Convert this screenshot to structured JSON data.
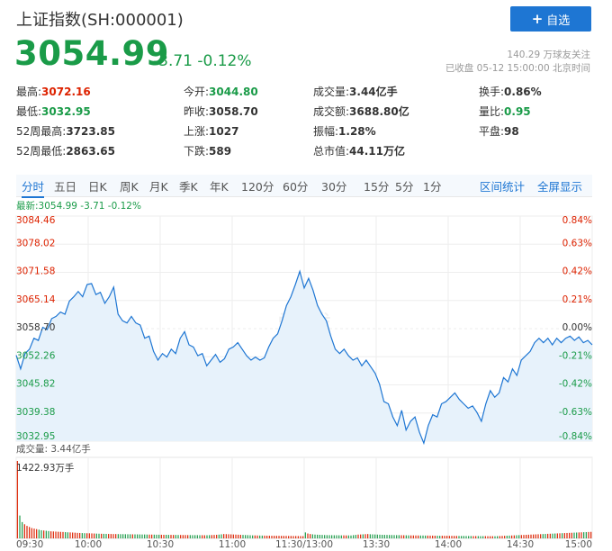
{
  "header": {
    "title": "上证指数(SH:000001)",
    "add_label": "自选",
    "price": "3054.99",
    "change": "-3.71 -0.12%",
    "followers": "140.29 万球友关注",
    "status": "已收盘 05-12 15:00:00 北京时间"
  },
  "stats": [
    {
      "label": "最高:",
      "value": "3072.16",
      "color": "red"
    },
    {
      "label": "今开:",
      "value": "3044.80",
      "color": "green"
    },
    {
      "label": "成交量:",
      "value": "3.44亿手",
      "color": "plain"
    },
    {
      "label": "换手:",
      "value": "0.86%",
      "color": "plain"
    },
    {
      "label": "最低:",
      "value": "3032.95",
      "color": "green"
    },
    {
      "label": "昨收:",
      "value": "3058.70",
      "color": "plain"
    },
    {
      "label": "成交额:",
      "value": "3688.80亿",
      "color": "plain"
    },
    {
      "label": "量比:",
      "value": "0.95",
      "color": "green"
    },
    {
      "label": "52周最高:",
      "value": "3723.85",
      "color": "plain"
    },
    {
      "label": "上涨:",
      "value": "1027",
      "color": "plain"
    },
    {
      "label": "振幅:",
      "value": "1.28%",
      "color": "plain"
    },
    {
      "label": "平盘:",
      "value": "98",
      "color": "plain"
    },
    {
      "label": "52周最低:",
      "value": "2863.65",
      "color": "plain"
    },
    {
      "label": "下跌:",
      "value": "589",
      "color": "plain"
    },
    {
      "label": "总市值:",
      "value": "44.11万亿",
      "color": "plain"
    }
  ],
  "tabs": [
    "分时",
    "五日",
    "日K",
    "周K",
    "月K",
    "季K",
    "年K",
    "120分",
    "60分",
    "30分",
    "15分",
    "5分",
    "1分"
  ],
  "active_tab": "分时",
  "right_tabs": [
    "区间统计",
    "全屏显示"
  ],
  "latest_line": "最新:3054.99 -3.71 -0.12%",
  "volume_label": "成交量: 3.44亿手",
  "volume_max_label": "1422.93万手",
  "watermark": "雪球",
  "colors": {
    "up": "#dd2200",
    "down": "#1a9b48",
    "line": "#1e76d3",
    "fill": "#e7f2fb",
    "accent": "#1e76d3"
  },
  "chart_data": {
    "type": "line",
    "y_price_ticks": [
      "3084.46",
      "3078.02",
      "3071.58",
      "3065.14",
      "3058.70",
      "3052.26",
      "3045.82",
      "3039.38",
      "3032.95"
    ],
    "y_pct_ticks": [
      "0.84%",
      "0.63%",
      "0.42%",
      "0.21%",
      "0.00%",
      "-0.21%",
      "-0.42%",
      "-0.63%",
      "-0.84%"
    ],
    "ylim": [
      3032.95,
      3084.46
    ],
    "prev_close": 3058.7,
    "x_ticks": [
      "09:30",
      "10:00",
      "10:30",
      "11:00",
      "11:30/13:00",
      "13:30",
      "14:00",
      "14:30",
      "15:00"
    ],
    "x_tick_minutes": [
      0,
      30,
      60,
      90,
      120,
      150,
      180,
      210,
      240
    ],
    "price_series": [
      [
        0,
        3052.6
      ],
      [
        2,
        3049.5
      ],
      [
        4,
        3053.0
      ],
      [
        6,
        3054.0
      ],
      [
        8,
        3056.5
      ],
      [
        10,
        3056.0
      ],
      [
        12,
        3059.0
      ],
      [
        14,
        3058.5
      ],
      [
        16,
        3061.0
      ],
      [
        18,
        3061.5
      ],
      [
        20,
        3062.5
      ],
      [
        22,
        3062.0
      ],
      [
        24,
        3065.0
      ],
      [
        26,
        3066.0
      ],
      [
        28,
        3067.2
      ],
      [
        30,
        3066.0
      ],
      [
        32,
        3068.8
      ],
      [
        34,
        3069.0
      ],
      [
        36,
        3066.5
      ],
      [
        38,
        3067.0
      ],
      [
        40,
        3064.5
      ],
      [
        42,
        3066.0
      ],
      [
        44,
        3068.2
      ],
      [
        46,
        3062.0
      ],
      [
        48,
        3060.5
      ],
      [
        50,
        3060.0
      ],
      [
        52,
        3061.5
      ],
      [
        54,
        3060.0
      ],
      [
        56,
        3059.5
      ],
      [
        58,
        3056.5
      ],
      [
        60,
        3057.0
      ],
      [
        62,
        3053.5
      ],
      [
        64,
        3051.5
      ],
      [
        66,
        3053.0
      ],
      [
        68,
        3052.2
      ],
      [
        70,
        3054.0
      ],
      [
        72,
        3053.0
      ],
      [
        74,
        3056.5
      ],
      [
        76,
        3058.0
      ],
      [
        78,
        3055.0
      ],
      [
        80,
        3054.5
      ],
      [
        82,
        3052.5
      ],
      [
        84,
        3053.0
      ],
      [
        86,
        3050.2
      ],
      [
        88,
        3051.5
      ],
      [
        90,
        3052.8
      ],
      [
        92,
        3051.0
      ],
      [
        94,
        3051.8
      ],
      [
        96,
        3054.0
      ],
      [
        98,
        3054.5
      ],
      [
        100,
        3055.5
      ],
      [
        102,
        3054.0
      ],
      [
        104,
        3052.5
      ],
      [
        106,
        3051.5
      ],
      [
        108,
        3052.2
      ],
      [
        110,
        3051.5
      ],
      [
        112,
        3052.0
      ],
      [
        114,
        3054.5
      ],
      [
        116,
        3056.5
      ],
      [
        118,
        3057.5
      ],
      [
        120,
        3060.5
      ],
      [
        122,
        3064.0
      ],
      [
        124,
        3066.0
      ],
      [
        126,
        3068.8
      ],
      [
        128,
        3071.8
      ],
      [
        130,
        3068.0
      ],
      [
        132,
        3070.2
      ],
      [
        134,
        3067.5
      ],
      [
        136,
        3064.0
      ],
      [
        138,
        3062.0
      ],
      [
        140,
        3060.5
      ],
      [
        142,
        3057.0
      ],
      [
        144,
        3054.0
      ],
      [
        146,
        3053.0
      ],
      [
        148,
        3054.0
      ],
      [
        150,
        3052.5
      ],
      [
        152,
        3051.5
      ],
      [
        154,
        3052.0
      ],
      [
        156,
        3050.2
      ],
      [
        158,
        3051.5
      ],
      [
        160,
        3050.0
      ],
      [
        162,
        3048.5
      ],
      [
        164,
        3046.0
      ],
      [
        166,
        3042.0
      ],
      [
        168,
        3041.5
      ],
      [
        170,
        3038.5
      ],
      [
        172,
        3036.5
      ],
      [
        174,
        3040.0
      ],
      [
        176,
        3035.5
      ],
      [
        178,
        3037.5
      ],
      [
        180,
        3038.5
      ],
      [
        182,
        3035.0
      ],
      [
        184,
        3032.5
      ],
      [
        186,
        3036.5
      ],
      [
        188,
        3039.0
      ],
      [
        190,
        3038.5
      ],
      [
        192,
        3041.5
      ],
      [
        194,
        3042.0
      ],
      [
        196,
        3043.0
      ],
      [
        198,
        3044.0
      ],
      [
        200,
        3042.5
      ],
      [
        202,
        3041.5
      ],
      [
        204,
        3040.5
      ],
      [
        206,
        3041.0
      ],
      [
        208,
        3039.5
      ],
      [
        210,
        3037.5
      ],
      [
        212,
        3041.5
      ],
      [
        214,
        3044.5
      ],
      [
        216,
        3043.0
      ],
      [
        218,
        3044.0
      ],
      [
        220,
        3047.5
      ],
      [
        222,
        3046.5
      ],
      [
        224,
        3049.5
      ],
      [
        226,
        3048.0
      ],
      [
        228,
        3051.5
      ],
      [
        230,
        3052.5
      ],
      [
        232,
        3053.5
      ],
      [
        234,
        3055.5
      ],
      [
        236,
        3056.5
      ],
      [
        238,
        3055.5
      ],
      [
        240,
        3056.5
      ],
      [
        242,
        3055.0
      ],
      [
        244,
        3056.5
      ],
      [
        246,
        3055.5
      ],
      [
        248,
        3056.5
      ],
      [
        250,
        3057.0
      ],
      [
        252,
        3056.0
      ],
      [
        254,
        3056.8
      ],
      [
        256,
        3055.5
      ],
      [
        258,
        3056.0
      ],
      [
        260,
        3055.0
      ]
    ],
    "volume_max": 1422.93,
    "volume_series": [
      1423,
      420,
      300,
      260,
      230,
      210,
      190,
      180,
      170,
      160,
      150,
      145,
      140,
      135,
      130,
      128,
      125,
      122,
      120,
      118,
      115,
      112,
      110,
      108,
      105,
      102,
      100,
      98,
      96,
      95,
      94,
      92,
      90,
      88,
      86,
      85,
      84,
      83,
      82,
      81,
      80,
      80,
      79,
      78,
      78,
      77,
      76,
      76,
      75,
      74,
      74,
      73,
      72,
      72,
      71,
      70,
      70,
      69,
      68,
      68,
      67,
      66,
      66,
      65,
      65,
      64,
      64,
      63,
      63,
      62,
      62,
      61,
      61,
      60,
      60,
      60,
      59,
      59,
      58,
      58,
      60,
      62,
      64,
      66,
      70,
      75,
      80,
      78,
      76,
      74,
      72,
      70,
      68,
      66,
      64,
      62,
      60,
      58,
      56,
      55,
      54,
      53,
      52,
      51,
      50,
      50,
      49,
      48,
      48,
      47,
      47,
      46,
      46,
      45,
      45,
      44,
      44,
      43,
      43,
      42,
      110,
      90,
      80,
      75,
      70,
      68,
      66,
      64,
      62,
      60,
      60,
      59,
      58,
      58,
      57,
      56,
      56,
      55,
      55,
      54,
      60,
      65,
      70,
      72,
      75,
      78,
      80,
      76,
      74,
      72,
      70,
      68,
      66,
      65,
      64,
      63,
      62,
      61,
      60,
      60,
      59,
      58,
      57,
      56,
      55,
      55,
      54,
      54,
      53,
      53,
      52,
      52,
      51,
      51,
      50,
      50,
      49,
      49,
      48,
      48,
      47,
      47,
      46,
      46,
      45,
      45,
      45,
      44,
      44,
      44,
      43,
      43,
      43,
      42,
      42,
      42,
      41,
      41,
      41,
      40,
      42,
      44,
      46,
      48,
      50,
      52,
      54,
      56,
      58,
      60,
      62,
      64,
      66,
      68,
      70,
      72,
      74,
      76,
      78,
      80,
      82,
      84,
      86,
      88,
      90,
      92,
      94,
      96,
      98,
      100,
      102,
      104,
      106,
      108,
      110,
      112,
      114,
      116,
      118,
      120
    ]
  }
}
